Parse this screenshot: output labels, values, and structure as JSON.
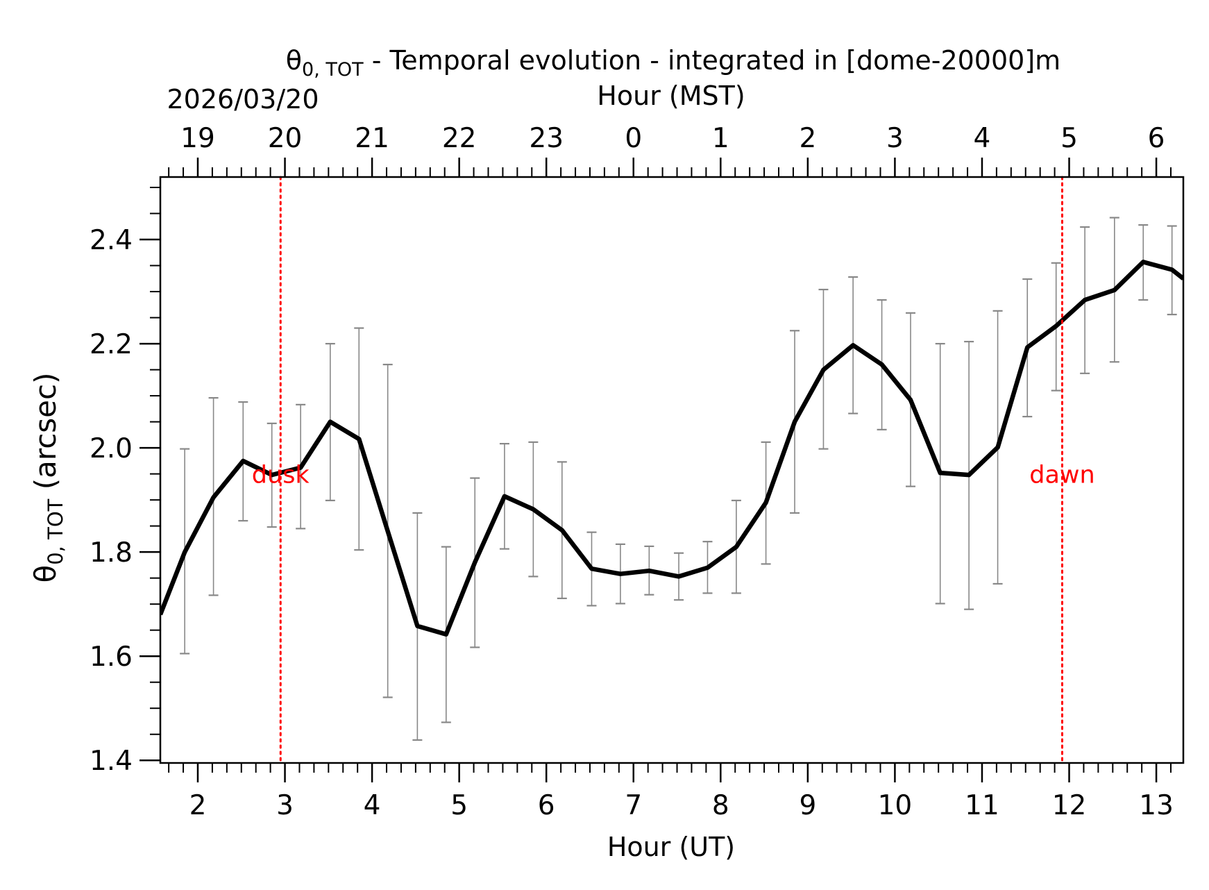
{
  "chart_data": {
    "type": "line",
    "title_symbol": "θ",
    "title_sub": "0, TOT",
    "title_rest": " - Temporal evolution - integrated in [dome-20000]m",
    "date_label": "2026/03/20",
    "top_axis_label": "Hour (MST)",
    "xlabel": "Hour (UT)",
    "ylabel_symbol": "θ",
    "ylabel_sub": "0, TOT",
    "ylabel_rest": " (arcsec)",
    "xlim": [
      1.57,
      13.31
    ],
    "ylim": [
      1.395,
      2.52
    ],
    "x_ticks": [
      2,
      3,
      4,
      5,
      6,
      7,
      8,
      9,
      10,
      11,
      12,
      13
    ],
    "x_tick_labels": [
      "2",
      "3",
      "4",
      "5",
      "6",
      "7",
      "8",
      "9",
      "10",
      "11",
      "12",
      "13"
    ],
    "top_ticks_ut": [
      2,
      3,
      4,
      5,
      6,
      7,
      8,
      9,
      10,
      11,
      12,
      13
    ],
    "top_tick_labels": [
      "19",
      "20",
      "21",
      "22",
      "23",
      "0",
      "1",
      "2",
      "3",
      "4",
      "5",
      "6"
    ],
    "y_ticks": [
      1.4,
      1.6,
      1.8,
      2.0,
      2.2,
      2.4
    ],
    "y_tick_labels": [
      "1.4",
      "1.6",
      "1.8",
      "2.0",
      "2.2",
      "2.4"
    ],
    "series": [
      {
        "name": "θ0,TOT",
        "color": "#000000",
        "x": [
          1.57,
          1.85,
          2.18,
          2.52,
          2.85,
          3.18,
          3.52,
          3.85,
          4.18,
          4.52,
          4.85,
          5.18,
          5.52,
          5.85,
          6.18,
          6.52,
          6.85,
          7.18,
          7.52,
          7.85,
          8.18,
          8.52,
          8.85,
          9.18,
          9.52,
          9.85,
          10.18,
          10.52,
          10.85,
          11.18,
          11.52,
          11.85,
          12.18,
          12.52,
          12.85,
          13.18,
          13.31
        ],
        "y": [
          1.68,
          1.8,
          1.905,
          1.975,
          1.948,
          1.962,
          2.05,
          2.017,
          1.84,
          1.658,
          1.642,
          1.78,
          1.907,
          1.882,
          1.842,
          1.768,
          1.758,
          1.764,
          1.753,
          1.77,
          1.81,
          1.895,
          2.05,
          2.15,
          2.197,
          2.16,
          2.092,
          1.952,
          1.948,
          2.001,
          2.193,
          2.234,
          2.284,
          2.303,
          2.357,
          2.342,
          2.325
        ]
      }
    ],
    "error_bars": {
      "color": "#888888",
      "x": [
        1.85,
        2.18,
        2.52,
        2.85,
        3.18,
        3.52,
        3.85,
        4.18,
        4.52,
        4.85,
        5.18,
        5.52,
        5.85,
        6.18,
        6.52,
        6.85,
        7.18,
        7.52,
        7.85,
        8.18,
        8.52,
        8.85,
        9.18,
        9.52,
        9.85,
        10.18,
        10.52,
        10.85,
        11.18,
        11.52,
        11.85,
        12.18,
        12.52,
        12.85,
        13.18
      ],
      "low": [
        1.605,
        1.717,
        1.86,
        1.848,
        1.845,
        1.899,
        1.804,
        1.521,
        1.439,
        1.473,
        1.617,
        1.806,
        1.753,
        1.711,
        1.697,
        1.701,
        1.718,
        1.708,
        1.721,
        1.721,
        1.777,
        1.875,
        1.998,
        2.066,
        2.035,
        1.926,
        1.701,
        1.69,
        1.739,
        2.06,
        2.11,
        2.143,
        2.165,
        2.284,
        2.256
      ],
      "high": [
        1.998,
        2.096,
        2.088,
        2.047,
        2.083,
        2.2,
        2.23,
        2.16,
        1.875,
        1.81,
        1.942,
        2.008,
        2.011,
        1.973,
        1.838,
        1.815,
        1.811,
        1.798,
        1.82,
        1.899,
        2.011,
        2.225,
        2.304,
        2.328,
        2.284,
        2.259,
        2.2,
        2.204,
        2.263,
        2.324,
        2.355,
        2.424,
        2.442,
        2.428,
        2.426
      ]
    },
    "annotations": [
      {
        "label": "dusk",
        "x": 2.95,
        "color": "#ff0000"
      },
      {
        "label": "dawn",
        "x": 11.92,
        "color": "#ff0000"
      }
    ],
    "grid": false,
    "legend": "none"
  }
}
